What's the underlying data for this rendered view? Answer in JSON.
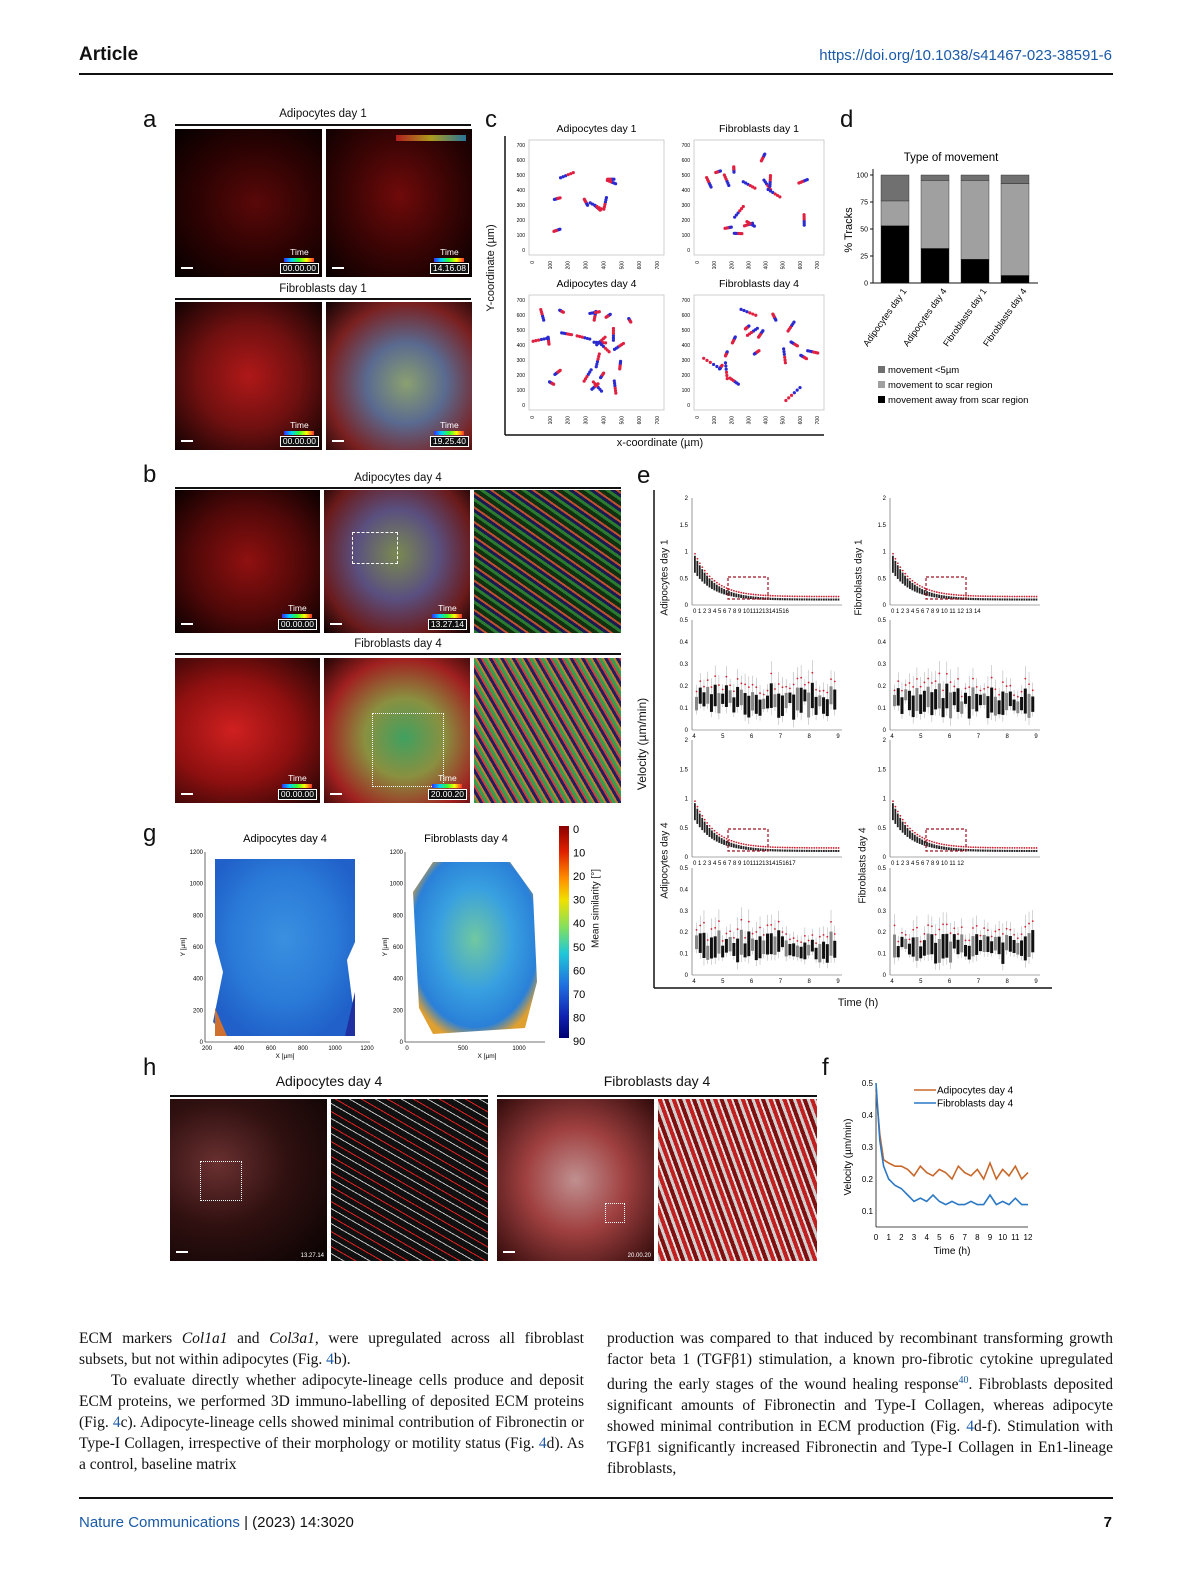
{
  "header": {
    "section": "Article",
    "doi": "https://doi.org/10.1038/s41467-023-38591-6"
  },
  "panels": {
    "a": {
      "label": "a",
      "top_title": "Adipocytes day 1",
      "bottom_title": "Fibroblasts day 1",
      "stamps": [
        {
          "word": "Time",
          "value": "00.00.00"
        },
        {
          "word": "Time",
          "value": "14.16.08"
        },
        {
          "word": "Time",
          "value": "00.00.00"
        },
        {
          "word": "Time",
          "value": "19.25.40"
        }
      ]
    },
    "b": {
      "label": "b",
      "top_title": "Adipocytes day 4",
      "bottom_title": "Fibroblasts day 4",
      "stamps": [
        {
          "word": "Time",
          "value": "00.00.00"
        },
        {
          "word": "Time",
          "value": "13.27.14"
        },
        {
          "word": "Time",
          "value": "00.00.00"
        },
        {
          "word": "Time",
          "value": "20.00.20"
        }
      ]
    },
    "c": {
      "label": "c",
      "titles": [
        "Adipocytes day 1",
        "Fibroblasts day 1",
        "Adipocytes day 4",
        "Fibroblasts day 4"
      ],
      "ylabel": "Y-coordinate (µm)",
      "xlabel": "x-coordinate (µm)",
      "ticks": [
        "0",
        "100",
        "200",
        "300",
        "400",
        "500",
        "600",
        "700"
      ]
    },
    "d": {
      "label": "d"
    },
    "e": {
      "label": "e",
      "ylabel": "Velocity  (µm/min)",
      "xlabel": "Time (h)",
      "row_labels": [
        "Adipocytes day 1",
        "Fibroblasts day 1",
        "Adipocytes day 4",
        "Fibroblasts day 4"
      ],
      "top_ticks_y": [
        "0",
        "0.5",
        "1",
        "1.5",
        "2"
      ],
      "zoom_ticks_y": [
        "0",
        "0.1",
        "0.2",
        "0.3",
        "0.4",
        "0.5"
      ],
      "zoom_ticks_x": [
        "4",
        "5",
        "6",
        "7",
        "8",
        "9"
      ],
      "x_ticks": [
        "0 1 2 3 4 5 6 7 8 9 10111213141516",
        "0 1 2 3 4 5 6 7 8 9 10 11 12 13 14",
        "0 1 2 3 4 5 6 7 8 9 1011121314151617",
        "0 1 2 3 4 5 6 7 8 9 10 11 12"
      ]
    },
    "f": {
      "label": "f"
    },
    "g": {
      "label": "g",
      "titles": [
        "Adipocytes day 4",
        "Fibroblasts day 4"
      ],
      "ylabel": "Y [µm]",
      "xlabel": "X [µm]",
      "y_ticks": [
        "0",
        "200",
        "400",
        "600",
        "800",
        "1000",
        "1200"
      ],
      "x_ticks_left": [
        "200",
        "400",
        "600",
        "800",
        "1000",
        "1200"
      ],
      "x_ticks_right": [
        "0",
        "500",
        "1000"
      ],
      "colorbar_label": "Mean similarity [°]",
      "colorbar_ticks": [
        "0",
        "10",
        "20",
        "30",
        "40",
        "50",
        "60",
        "70",
        "80",
        "90"
      ]
    },
    "h": {
      "label": "h",
      "titles": [
        "Adipocytes day 4",
        "Fibroblasts day 4"
      ],
      "stamps": [
        "13.27.14",
        "20.00.20"
      ]
    }
  },
  "chart_data": [
    {
      "id": "d",
      "type": "bar",
      "stacked": true,
      "title": "Type of movement",
      "ylabel": "% Tracks",
      "ylim": [
        0,
        100
      ],
      "yticks": [
        0,
        25,
        50,
        75,
        100
      ],
      "categories": [
        "Adipocytes day 1",
        "Adipocytes day 4",
        "Fibroblasts day 1",
        "Fibroblasts day 4"
      ],
      "series": [
        {
          "name": "movement away from scar region",
          "color": "#000000",
          "values": [
            53,
            32,
            22,
            7
          ]
        },
        {
          "name": "movement to scar region",
          "color": "#a0a0a0",
          "values": [
            23,
            63,
            73,
            85
          ]
        },
        {
          "name": "movement <5µm",
          "color": "#707070",
          "values": [
            24,
            5,
            5,
            8
          ]
        }
      ],
      "legend": "bottom"
    },
    {
      "id": "f",
      "type": "line",
      "ylabel": "Velocity (µm/min)",
      "xlabel": "Time (h)",
      "xlim": [
        0,
        12
      ],
      "ylim": [
        0.05,
        0.5
      ],
      "xticks": [
        0,
        1,
        2,
        3,
        4,
        5,
        6,
        7,
        8,
        9,
        10,
        11,
        12
      ],
      "yticks": [
        0.1,
        0.2,
        0.3,
        0.4,
        0.5
      ],
      "legend": "top-right",
      "series": [
        {
          "name": "Adipocytes day 4",
          "color": "#c8682a",
          "x": [
            0,
            0.3,
            0.6,
            1,
            1.5,
            2,
            2.5,
            3,
            3.5,
            4,
            4.5,
            5,
            5.5,
            6,
            6.5,
            7,
            7.5,
            8,
            8.5,
            9,
            9.5,
            10,
            10.5,
            11,
            11.5,
            12
          ],
          "y": [
            0.48,
            0.34,
            0.26,
            0.25,
            0.24,
            0.24,
            0.23,
            0.21,
            0.24,
            0.22,
            0.21,
            0.23,
            0.22,
            0.2,
            0.24,
            0.22,
            0.21,
            0.23,
            0.2,
            0.25,
            0.2,
            0.23,
            0.21,
            0.24,
            0.2,
            0.22
          ]
        },
        {
          "name": "Fibroblasts day 4",
          "color": "#2b78c5",
          "x": [
            0,
            0.3,
            0.6,
            1,
            1.5,
            2,
            2.5,
            3,
            3.5,
            4,
            4.5,
            5,
            5.5,
            6,
            6.5,
            7,
            7.5,
            8,
            8.5,
            9,
            9.5,
            10,
            10.5,
            11,
            11.5,
            12
          ],
          "y": [
            0.5,
            0.32,
            0.24,
            0.2,
            0.18,
            0.17,
            0.15,
            0.13,
            0.14,
            0.13,
            0.15,
            0.13,
            0.12,
            0.13,
            0.12,
            0.12,
            0.13,
            0.12,
            0.12,
            0.15,
            0.12,
            0.13,
            0.12,
            0.14,
            0.12,
            0.12
          ]
        }
      ]
    }
  ],
  "body": {
    "col1": [
      {
        "parts": [
          [
            "ECM markers ",
            ""
          ],
          [
            "Col1a1",
            "i"
          ],
          [
            " and ",
            ""
          ],
          [
            "Col3a1",
            "i"
          ],
          [
            ", were upregulated across all fibroblast subsets, but not within adipocytes (Fig. ",
            ""
          ],
          [
            "4",
            "l"
          ],
          [
            "b).",
            ""
          ]
        ]
      },
      {
        "indent": true,
        "parts": [
          [
            "To evaluate directly whether adipocyte-lineage cells produce and deposit ECM proteins, we performed 3D immuno-labelling of deposited ECM proteins (Fig. ",
            ""
          ],
          [
            "4",
            "l"
          ],
          [
            "c). Adipocyte-lineage cells showed minimal contribution of Fibronectin or Type-I Collagen, irrespective of their morphology or motility status (Fig. ",
            ""
          ],
          [
            "4",
            "l"
          ],
          [
            "d). As a control, baseline matrix",
            ""
          ]
        ]
      }
    ],
    "col2": [
      {
        "parts": [
          [
            "production was compared to that induced by recombinant transforming growth factor beta 1 (TGFβ1) stimulation, a known pro-fibrotic cytokine upregulated during the early stages of the wound healing response",
            ""
          ],
          [
            "40",
            "s"
          ],
          [
            ". Fibroblasts deposited significant amounts of Fibronectin and Type-I Collagen, whereas adipocyte showed minimal contribution in ECM production (Fig. ",
            ""
          ],
          [
            "4",
            "l"
          ],
          [
            "d-f). Stimulation with TGFβ1 significantly increased Fibronectin and Type-I Collagen in En1-lineage fibroblasts,",
            ""
          ]
        ]
      }
    ]
  },
  "footer": {
    "journal": "Nature Communications",
    "issue": " | (2023) 14:3020",
    "page": "7"
  }
}
